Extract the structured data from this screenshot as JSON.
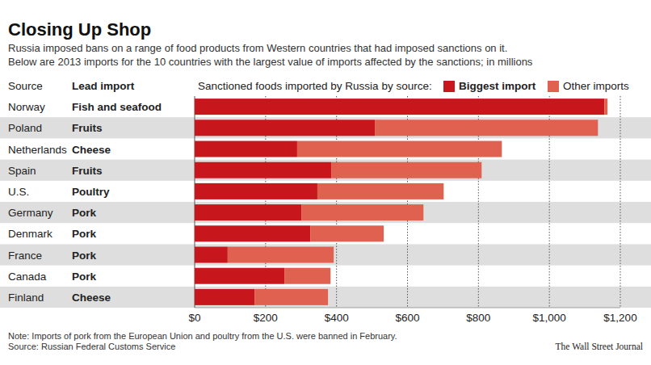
{
  "chart_data": {
    "type": "bar",
    "orientation": "horizontal",
    "stacked": true,
    "title": "Closing Up Shop",
    "subtitle": [
      "Russia imposed bans on a range of food products from Western countries that had imposed sanctions on it.",
      "Below are 2013 imports for the 10 countries with the largest value of imports affected by the sanctions; in millions"
    ],
    "category_header": "Source",
    "lead_header": "Lead import",
    "legend_title": "Sanctioned foods imported by Russia by source:",
    "categories": [
      "Norway",
      "Poland",
      "Netherlands",
      "Spain",
      "U.S.",
      "Germany",
      "Denmark",
      "France",
      "Canada",
      "Finland"
    ],
    "lead_imports": [
      "Fish and seafood",
      "Fruits",
      "Cheese",
      "Fruits",
      "Poultry",
      "Pork",
      "Pork",
      "Pork",
      "Pork",
      "Cheese"
    ],
    "series": [
      {
        "name": "Biggest import",
        "color": "#c8161d",
        "values": [
          1155,
          508,
          289,
          385,
          346,
          301,
          326,
          93,
          253,
          169
        ]
      },
      {
        "name": "Other imports",
        "color": "#e0614f",
        "values": [
          9,
          629,
          577,
          424,
          356,
          344,
          207,
          299,
          130,
          207
        ]
      }
    ],
    "xlim": [
      0,
      1200
    ],
    "xticks": [
      {
        "value": 0,
        "label": "$0"
      },
      {
        "value": 200,
        "label": "$200"
      },
      {
        "value": 400,
        "label": "$400"
      },
      {
        "value": 600,
        "label": "$600"
      },
      {
        "value": 800,
        "label": "$800"
      },
      {
        "value": 1000,
        "label": "$1,000"
      },
      {
        "value": 1200,
        "label": "$1,200"
      }
    ],
    "grid": true,
    "note": "Note: Imports of pork from the European Union and poultry from the U.S. were banned in February.",
    "source": "Source: Russian Federal Customs Service",
    "credit": "The Wall Street Journal"
  }
}
